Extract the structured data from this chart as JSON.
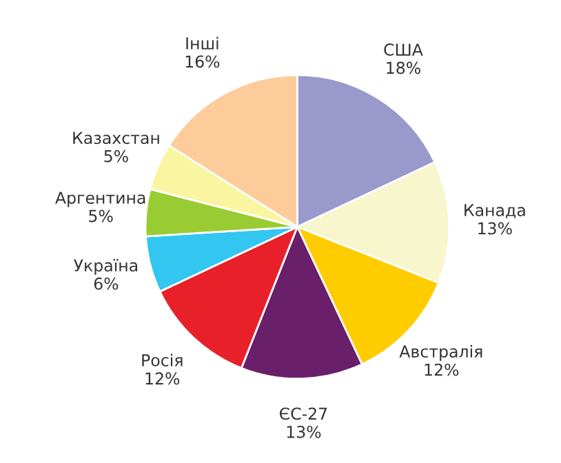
{
  "chart_data": {
    "type": "pie",
    "categories": [
      "США",
      "Канада",
      "Австралія",
      "ЄС-27",
      "Росія",
      "Україна",
      "Аргентина",
      "Казахстан",
      "Інші"
    ],
    "values": [
      18,
      13,
      12,
      13,
      12,
      6,
      5,
      5,
      16
    ],
    "value_labels": [
      "18%",
      "13%",
      "12%",
      "13%",
      "12%",
      "6%",
      "5%",
      "5%",
      "16%"
    ],
    "colors": [
      "#9999cc",
      "#f7f6cc",
      "#ffcc00",
      "#6a1f6a",
      "#e8202a",
      "#33c6f0",
      "#99cc33",
      "#faf5a0",
      "#fdcc9a"
    ]
  }
}
